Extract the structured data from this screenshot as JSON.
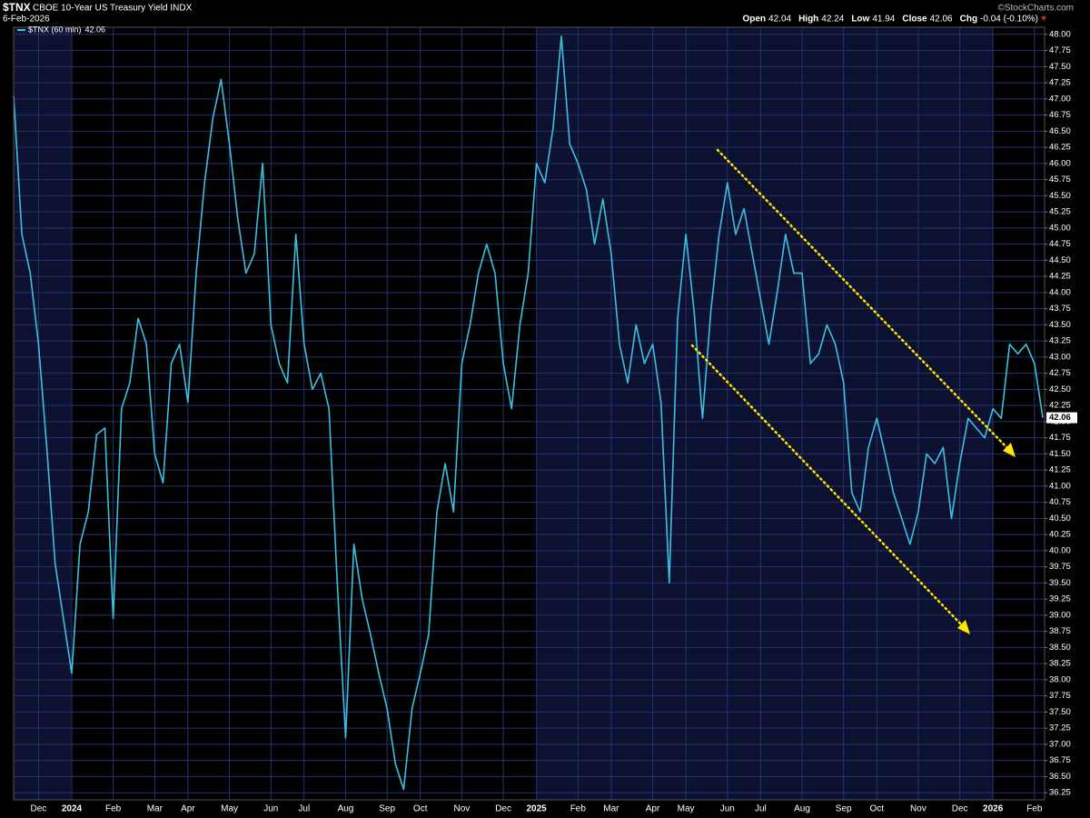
{
  "chart_data": {
    "type": "line",
    "title": "$TNX",
    "subtitle": "CBOE 10-Year US Treasury Yield INDX",
    "date": "6-Feb-2026",
    "watermark": "©StockCharts.com",
    "stats": [
      {
        "name": "Open",
        "value": "42.04"
      },
      {
        "name": "High",
        "value": "42.24"
      },
      {
        "name": "Low",
        "value": "41.94"
      },
      {
        "name": "Close",
        "value": "42.06"
      },
      {
        "name": "Chg",
        "value": "-0.04 (-0.10%)"
      }
    ],
    "categories": [
      null,
      null,
      null,
      "Dec",
      null,
      null,
      null,
      "2024",
      null,
      null,
      null,
      null,
      "Feb",
      null,
      null,
      null,
      null,
      "Mar",
      null,
      null,
      null,
      "Apr",
      null,
      null,
      null,
      null,
      "May",
      null,
      null,
      null,
      null,
      "Jun",
      null,
      null,
      null,
      "Jul",
      null,
      null,
      null,
      null,
      "Aug",
      null,
      null,
      null,
      null,
      "Sep",
      null,
      null,
      null,
      "Oct",
      null,
      null,
      null,
      null,
      "Nov",
      null,
      null,
      null,
      null,
      "Dec",
      null,
      null,
      null,
      "2025",
      null,
      null,
      null,
      null,
      "Feb",
      null,
      null,
      null,
      "Mar",
      null,
      null,
      null,
      null,
      "Apr",
      null,
      null,
      null,
      "May",
      null,
      null,
      null,
      null,
      "Jun",
      null,
      null,
      null,
      "Jul",
      null,
      null,
      null,
      null,
      "Aug",
      null,
      null,
      null,
      null,
      "Sep",
      null,
      null,
      null,
      "Oct",
      null,
      null,
      null,
      null,
      "Nov",
      null,
      null,
      null,
      null,
      "Dec",
      null,
      null,
      null,
      "2026",
      null,
      null,
      null,
      null,
      "Feb",
      null
    ],
    "bold_categories": [
      "2024",
      "2025",
      "2026"
    ],
    "series": [
      {
        "name": "$TNX (60 min)",
        "color": "#3cc0e0",
        "last_value_label": "42.06",
        "values": [
          47.05,
          44.9,
          44.3,
          43.2,
          41.6,
          39.8,
          38.95,
          38.1,
          40.1,
          40.6,
          41.8,
          41.9,
          38.95,
          42.2,
          42.6,
          43.6,
          43.2,
          41.5,
          41.05,
          42.9,
          43.2,
          42.3,
          44.3,
          45.7,
          46.7,
          47.3,
          46.3,
          45.15,
          44.3,
          44.6,
          46.0,
          43.5,
          42.9,
          42.6,
          44.9,
          43.2,
          42.5,
          42.75,
          42.2,
          39.5,
          37.1,
          40.1,
          39.25,
          38.7,
          38.1,
          37.55,
          36.7,
          36.3,
          37.55,
          38.1,
          38.7,
          40.6,
          41.35,
          40.6,
          42.9,
          43.5,
          44.3,
          44.75,
          44.3,
          42.9,
          42.2,
          43.5,
          44.3,
          46.0,
          45.7,
          46.55,
          47.97,
          46.3,
          46.0,
          45.6,
          44.75,
          45.45,
          44.6,
          43.2,
          42.6,
          43.5,
          42.9,
          43.2,
          42.3,
          39.5,
          43.6,
          44.9,
          43.7,
          42.05,
          43.7,
          44.9,
          45.7,
          44.9,
          45.3,
          44.6,
          43.9,
          43.2,
          44.0,
          44.9,
          44.3,
          44.3,
          42.9,
          43.05,
          43.5,
          43.2,
          42.6,
          40.9,
          40.6,
          41.6,
          42.05,
          41.5,
          40.9,
          40.5,
          40.1,
          40.6,
          41.5,
          41.35,
          41.6,
          40.5,
          41.35,
          42.05,
          41.9,
          41.75,
          42.2,
          42.05,
          43.2,
          43.05,
          43.2,
          42.9,
          42.06
        ]
      }
    ],
    "ylim": [
      36.14,
      48.11
    ],
    "yticks": [
      {
        "value": 36.25,
        "label": "36.25"
      },
      {
        "value": 36.5,
        "label": "36.50"
      },
      {
        "value": 36.75,
        "label": "36.75"
      },
      {
        "value": 37,
        "label": "37.00"
      },
      {
        "value": 37.25,
        "label": "37.25"
      },
      {
        "value": 37.5,
        "label": "37.50"
      },
      {
        "value": 37.75,
        "label": "37.75"
      },
      {
        "value": 38,
        "label": "38.00"
      },
      {
        "value": 38.25,
        "label": "38.25"
      },
      {
        "value": 38.5,
        "label": "38.50"
      },
      {
        "value": 38.75,
        "label": "38.75"
      },
      {
        "value": 39,
        "label": "39.00"
      },
      {
        "value": 39.25,
        "label": "39.25"
      },
      {
        "value": 39.5,
        "label": "39.50"
      },
      {
        "value": 39.75,
        "label": "39.75"
      },
      {
        "value": 40,
        "label": "40.00"
      },
      {
        "value": 40.25,
        "label": "40.25"
      },
      {
        "value": 40.5,
        "label": "40.50"
      },
      {
        "value": 40.75,
        "label": "40.75"
      },
      {
        "value": 41,
        "label": "41.00"
      },
      {
        "value": 41.25,
        "label": "41.25"
      },
      {
        "value": 41.5,
        "label": "41.50"
      },
      {
        "value": 41.75,
        "label": "41.75"
      },
      {
        "value": 42,
        "label": "42.00"
      },
      {
        "value": 42.25,
        "label": "42.25"
      },
      {
        "value": 42.5,
        "label": "42.50"
      },
      {
        "value": 42.75,
        "label": "42.75"
      },
      {
        "value": 43,
        "label": "43.00"
      },
      {
        "value": 43.25,
        "label": "43.25"
      },
      {
        "value": 43.5,
        "label": "43.50"
      },
      {
        "value": 43.75,
        "label": "43.75"
      },
      {
        "value": 44,
        "label": "44.00"
      },
      {
        "value": 44.25,
        "label": "44.25"
      },
      {
        "value": 44.5,
        "label": "44.50"
      },
      {
        "value": 44.75,
        "label": "44.75"
      },
      {
        "value": 45,
        "label": "45.00"
      },
      {
        "value": 45.25,
        "label": "45.25"
      },
      {
        "value": 45.5,
        "label": "45.50"
      },
      {
        "value": 45.75,
        "label": "45.75"
      },
      {
        "value": 46,
        "label": "46.00"
      },
      {
        "value": 46.25,
        "label": "46.25"
      },
      {
        "value": 46.5,
        "label": "46.50"
      },
      {
        "value": 46.75,
        "label": "46.75"
      },
      {
        "value": 47,
        "label": "47.00"
      },
      {
        "value": 47.25,
        "label": "47.25"
      },
      {
        "value": 47.5,
        "label": "47.50"
      },
      {
        "value": 47.75,
        "label": "47.75"
      },
      {
        "value": 48,
        "label": "48.00"
      }
    ],
    "grid": true
  }
}
